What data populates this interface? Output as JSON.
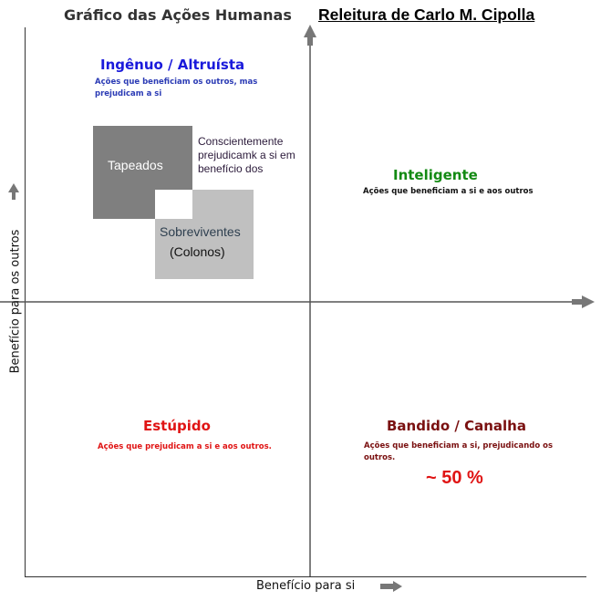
{
  "title": "Gráfico das Ações Humanas",
  "subtitle": "Releitura de Carlo M. Cipolla",
  "axes": {
    "x_label": "Benefício para si",
    "y_label": "Benefício para os outros"
  },
  "quadrants": {
    "top_left": {
      "title": "Ingênuo / Altruísta",
      "description": "Ações que beneficiam os outros, mas prejudicam a si",
      "title_color": "#1a1adb"
    },
    "top_right": {
      "title": "Inteligente",
      "description": "Ações que beneficiam a si e aos outros",
      "title_color": "#138a13"
    },
    "bottom_left": {
      "title": "Estúpido",
      "description": "Ações que prejudicam a si e aos outros.",
      "title_color": "#e01414"
    },
    "bottom_right": {
      "title": "Bandido / Canalha",
      "description": "Ações que beneficiam a si, prejudicando os outros.",
      "title_color": "#7a1010",
      "note": "~ 50 %"
    }
  },
  "boxes": {
    "tapeados": {
      "label": "Tapeados",
      "color": "#7f7f7f"
    },
    "sobreviventes": {
      "label_line1": "Sobreviventes",
      "label_line2": "(Colonos)",
      "color": "#c0c0c0"
    },
    "annotation": "Conscientemente prejudicamk a si em benefício dos"
  }
}
